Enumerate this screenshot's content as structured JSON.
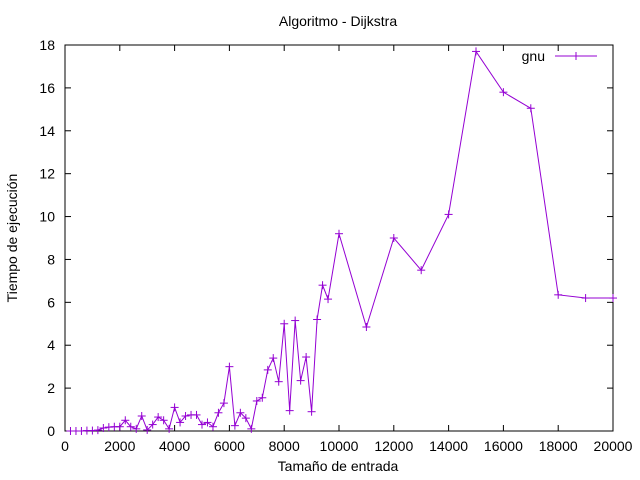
{
  "chart_data": {
    "type": "line",
    "title": "Algoritmo - Dijkstra",
    "xlabel": "Tamaño de entrada",
    "ylabel": "Tiempo de ejecución",
    "xlim": [
      0,
      20000
    ],
    "ylim": [
      0,
      18
    ],
    "xticks": [
      0,
      2000,
      4000,
      6000,
      8000,
      10000,
      12000,
      14000,
      16000,
      18000,
      20000
    ],
    "yticks": [
      0,
      2,
      4,
      6,
      8,
      10,
      12,
      14,
      16,
      18
    ],
    "grid": false,
    "legend": "top-right",
    "series": [
      {
        "name": "gnu",
        "color": "#9400d3",
        "marker": "plus",
        "x": [
          200,
          400,
          600,
          800,
          1000,
          1200,
          1400,
          1600,
          1800,
          2000,
          2200,
          2400,
          2600,
          2800,
          3000,
          3200,
          3400,
          3600,
          3800,
          4000,
          4200,
          4400,
          4600,
          4800,
          5000,
          5200,
          5400,
          5600,
          5800,
          6000,
          6200,
          6400,
          6600,
          6800,
          7000,
          7200,
          7400,
          7600,
          7800,
          8000,
          8200,
          8400,
          8600,
          8800,
          9000,
          9200,
          9400,
          9600,
          10000,
          11000,
          12000,
          13000,
          14000,
          15000,
          16000,
          17000,
          18000,
          19000,
          20000
        ],
        "y": [
          0.0,
          0.0,
          0.0,
          0.02,
          0.02,
          0.04,
          0.14,
          0.18,
          0.2,
          0.2,
          0.5,
          0.2,
          0.1,
          0.7,
          0.05,
          0.3,
          0.65,
          0.5,
          0.1,
          1.1,
          0.4,
          0.7,
          0.75,
          0.75,
          0.3,
          0.4,
          0.2,
          0.85,
          1.3,
          3.0,
          0.25,
          0.85,
          0.6,
          0.1,
          1.4,
          1.55,
          2.85,
          3.4,
          2.3,
          5.0,
          0.95,
          5.15,
          2.35,
          3.45,
          0.9,
          5.2,
          6.8,
          6.15,
          9.2,
          4.85,
          9.0,
          7.5,
          10.1,
          17.7,
          15.8,
          15.05,
          6.35,
          6.2,
          6.2
        ]
      }
    ]
  }
}
